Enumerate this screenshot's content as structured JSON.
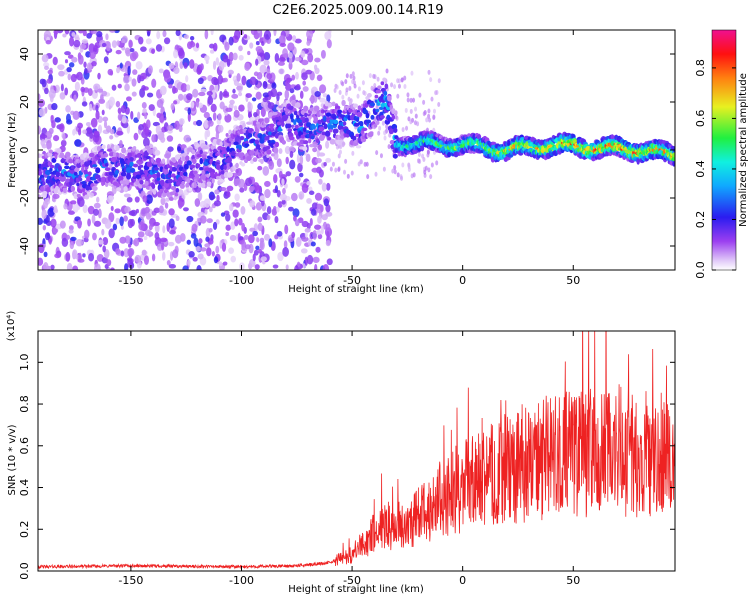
{
  "title": "C2E6.2025.009.00.14.R19",
  "chart_data": [
    {
      "type": "heatmap",
      "title": "C2E6.2025.009.00.14.R19",
      "xlabel": "Height of straight line (km)",
      "ylabel": "Frequency (Hz)",
      "xlim": [
        -192,
        96
      ],
      "ylim": [
        -50,
        50
      ],
      "x_ticks": [
        -150,
        -100,
        -50,
        0,
        50
      ],
      "y_ticks": [
        -40,
        -20,
        0,
        20,
        40
      ],
      "colorbar": {
        "label": "Normalized spectral amplitude",
        "range": [
          0,
          0.95
        ],
        "ticks": [
          0.0,
          0.2,
          0.4,
          0.6,
          0.8
        ],
        "colormap": "rainbow (violet→blue→cyan→green→yellow→red→magenta)"
      },
      "ridge": [
        {
          "x": -170,
          "y": -10,
          "amp": 0.3
        },
        {
          "x": -150,
          "y": -6,
          "amp": 0.3
        },
        {
          "x": -135,
          "y": -12,
          "amp": 0.3
        },
        {
          "x": -120,
          "y": -8,
          "amp": 0.25
        },
        {
          "x": -80,
          "y": 10,
          "amp": 0.3
        },
        {
          "x": -60,
          "y": 10,
          "amp": 0.3
        },
        {
          "x": -45,
          "y": 12,
          "amp": 0.35
        },
        {
          "x": -35,
          "y": 20,
          "amp": 0.4
        },
        {
          "x": -30,
          "y": 3,
          "amp": 0.45
        },
        {
          "x": 0,
          "y": 2,
          "amp": 0.55
        },
        {
          "x": 20,
          "y": 0,
          "amp": 0.65
        },
        {
          "x": 40,
          "y": 2,
          "amp": 0.75
        },
        {
          "x": 60,
          "y": 1,
          "amp": 0.8
        },
        {
          "x": 80,
          "y": 0,
          "amp": 0.8
        },
        {
          "x": 95,
          "y": -2,
          "amp": 0.7
        }
      ]
    },
    {
      "type": "line",
      "xlabel": "Height of straight line (km)",
      "ylabel": "SNR (10 * v/v)",
      "y_multiplier": "(x10⁴)",
      "xlim": [
        -192,
        96
      ],
      "ylim": [
        0,
        1.15
      ],
      "x_ticks": [
        -150,
        -100,
        -50,
        0,
        50
      ],
      "y_ticks": [
        0.0,
        0.2,
        0.4,
        0.6,
        0.8,
        1.0
      ],
      "series": [
        {
          "color": "#ee2222",
          "x": [
            -192,
            -150,
            -100,
            -75,
            -60,
            -50,
            -40,
            -35,
            -25,
            -10,
            0,
            10,
            25,
            40,
            55,
            70,
            85,
            96
          ],
          "y": [
            0.02,
            0.025,
            0.02,
            0.025,
            0.04,
            0.08,
            0.18,
            0.22,
            0.22,
            0.35,
            0.4,
            0.45,
            0.5,
            0.55,
            0.57,
            0.58,
            0.55,
            0.55
          ]
        }
      ]
    }
  ],
  "tick_labels": {
    "x": [
      "-150",
      "-100",
      "-50",
      "0",
      "50"
    ],
    "y_top": [
      "-40",
      "-20",
      "0",
      "20",
      "40"
    ],
    "y_bottom": [
      "0.0",
      "0.2",
      "0.4",
      "0.6",
      "0.8",
      "1.0"
    ],
    "colorbar": [
      "0.0",
      "0.2",
      "0.4",
      "0.6",
      "0.8"
    ]
  },
  "colors": {
    "line": "#ee2222",
    "background": "#ffffff",
    "axis": "#000000"
  }
}
